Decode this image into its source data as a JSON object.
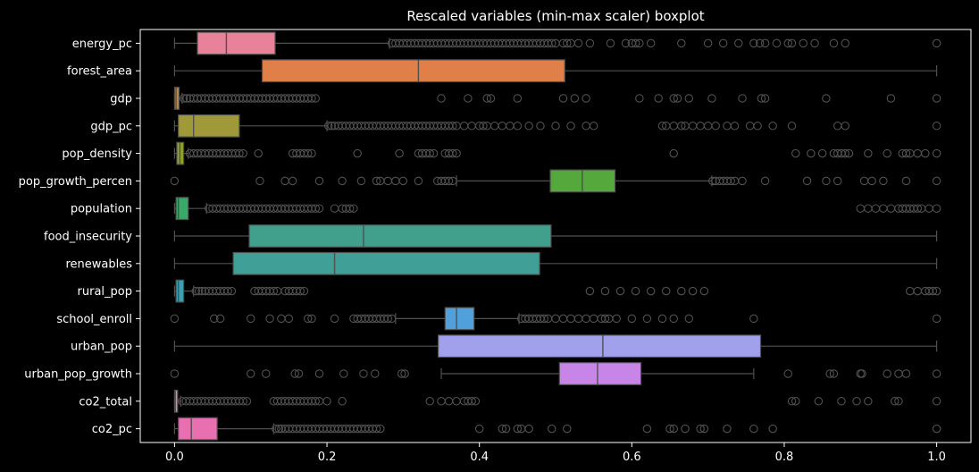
{
  "chart_data": {
    "type": "boxplot",
    "orientation": "horizontal",
    "title": "Rescaled variables (min-max scaler) boxplot",
    "xlabel": "",
    "ylabel": "",
    "xlim": [
      -0.045,
      1.045
    ],
    "x_ticks": [
      0.0,
      0.2,
      0.4,
      0.6,
      0.8,
      1.0
    ],
    "x_tick_labels": [
      "0.0",
      "0.2",
      "0.4",
      "0.6",
      "0.8",
      "1.0"
    ],
    "grid": false,
    "legend": false,
    "background": "#000000",
    "axis_color": "#ffffff",
    "whisker_color": "#505050",
    "series": [
      {
        "name": "energy_pc",
        "color": "#e8829a",
        "min": 0.0,
        "q1": 0.03,
        "median": 0.068,
        "q3": 0.132,
        "max": 0.282,
        "outliers": [
          0.285,
          0.29,
          0.295,
          0.3,
          0.305,
          0.31,
          0.315,
          0.32,
          0.325,
          0.33,
          0.335,
          0.34,
          0.345,
          0.35,
          0.355,
          0.36,
          0.365,
          0.37,
          0.375,
          0.38,
          0.385,
          0.39,
          0.395,
          0.4,
          0.405,
          0.41,
          0.415,
          0.42,
          0.425,
          0.43,
          0.435,
          0.44,
          0.445,
          0.45,
          0.455,
          0.46,
          0.465,
          0.47,
          0.475,
          0.48,
          0.485,
          0.49,
          0.495,
          0.5,
          0.51,
          0.515,
          0.52,
          0.53,
          0.545,
          0.572,
          0.592,
          0.6,
          0.605,
          0.61,
          0.625,
          0.665,
          0.7,
          0.72,
          0.74,
          0.76,
          0.768,
          0.775,
          0.79,
          0.805,
          0.81,
          0.825,
          0.84,
          0.865,
          0.88,
          1.0
        ]
      },
      {
        "name": "forest_area",
        "color": "#e08048",
        "min": 0.0,
        "q1": 0.115,
        "median": 0.32,
        "q3": 0.512,
        "max": 1.0,
        "outliers": []
      },
      {
        "name": "gdp",
        "color": "#b88a4e",
        "min": 0.0,
        "q1": 0.0,
        "median": 0.002,
        "q3": 0.006,
        "max": 0.01,
        "outliers": [
          0.012,
          0.016,
          0.02,
          0.025,
          0.03,
          0.035,
          0.04,
          0.045,
          0.05,
          0.055,
          0.06,
          0.065,
          0.07,
          0.075,
          0.08,
          0.085,
          0.09,
          0.095,
          0.1,
          0.105,
          0.11,
          0.115,
          0.12,
          0.125,
          0.13,
          0.135,
          0.14,
          0.145,
          0.15,
          0.155,
          0.16,
          0.165,
          0.17,
          0.175,
          0.18,
          0.185,
          0.35,
          0.385,
          0.41,
          0.415,
          0.45,
          0.51,
          0.525,
          0.54,
          0.61,
          0.635,
          0.655,
          0.66,
          0.675,
          0.705,
          0.745,
          0.77,
          0.775,
          0.855,
          0.94,
          1.0
        ]
      },
      {
        "name": "gdp_pc",
        "color": "#a0993a",
        "min": 0.0,
        "q1": 0.005,
        "median": 0.025,
        "q3": 0.085,
        "max": 0.2,
        "outliers": [
          0.202,
          0.206,
          0.21,
          0.215,
          0.22,
          0.225,
          0.23,
          0.235,
          0.24,
          0.245,
          0.25,
          0.255,
          0.26,
          0.265,
          0.27,
          0.275,
          0.28,
          0.285,
          0.29,
          0.295,
          0.3,
          0.305,
          0.31,
          0.315,
          0.32,
          0.325,
          0.33,
          0.335,
          0.34,
          0.345,
          0.35,
          0.355,
          0.36,
          0.365,
          0.37,
          0.38,
          0.39,
          0.4,
          0.405,
          0.41,
          0.42,
          0.43,
          0.44,
          0.45,
          0.465,
          0.48,
          0.5,
          0.52,
          0.54,
          0.55,
          0.64,
          0.645,
          0.655,
          0.665,
          0.67,
          0.68,
          0.69,
          0.7,
          0.71,
          0.725,
          0.735,
          0.755,
          0.765,
          0.785,
          0.81,
          0.87,
          0.88,
          1.0
        ]
      },
      {
        "name": "pop_density",
        "color": "#90a030",
        "min": 0.0,
        "q1": 0.003,
        "median": 0.007,
        "q3": 0.012,
        "max": 0.018,
        "outliers": [
          0.02,
          0.025,
          0.03,
          0.035,
          0.04,
          0.045,
          0.05,
          0.055,
          0.06,
          0.065,
          0.07,
          0.075,
          0.08,
          0.085,
          0.09,
          0.11,
          0.155,
          0.16,
          0.165,
          0.17,
          0.175,
          0.18,
          0.24,
          0.295,
          0.32,
          0.325,
          0.33,
          0.335,
          0.34,
          0.355,
          0.36,
          0.365,
          0.37,
          0.655,
          0.815,
          0.835,
          0.85,
          0.865,
          0.87,
          0.875,
          0.88,
          0.885,
          0.91,
          0.935,
          0.955,
          0.96,
          0.965,
          0.975,
          0.985,
          1.0
        ]
      },
      {
        "name": "pop_growth_percen",
        "color": "#55a83c",
        "min": 0.37,
        "q1": 0.493,
        "median": 0.535,
        "q3": 0.578,
        "max": 0.705,
        "outliers": [
          0.0,
          0.112,
          0.145,
          0.155,
          0.19,
          0.22,
          0.245,
          0.265,
          0.27,
          0.28,
          0.29,
          0.3,
          0.32,
          0.345,
          0.35,
          0.355,
          0.36,
          0.365,
          0.706,
          0.71,
          0.715,
          0.72,
          0.725,
          0.73,
          0.735,
          0.745,
          0.775,
          0.83,
          0.855,
          0.87,
          0.905,
          0.915,
          0.93,
          0.96,
          1.0
        ]
      },
      {
        "name": "population",
        "color": "#3aa868",
        "min": 0.0,
        "q1": 0.002,
        "median": 0.005,
        "q3": 0.018,
        "max": 0.042,
        "outliers": [
          0.045,
          0.05,
          0.055,
          0.06,
          0.065,
          0.07,
          0.075,
          0.08,
          0.085,
          0.09,
          0.095,
          0.1,
          0.105,
          0.11,
          0.115,
          0.12,
          0.125,
          0.13,
          0.135,
          0.14,
          0.145,
          0.15,
          0.155,
          0.16,
          0.165,
          0.17,
          0.175,
          0.18,
          0.185,
          0.19,
          0.21,
          0.22,
          0.225,
          0.23,
          0.235,
          0.9,
          0.91,
          0.92,
          0.93,
          0.94,
          0.95,
          0.955,
          0.96,
          0.965,
          0.97,
          0.975,
          0.98,
          0.99,
          1.0
        ]
      },
      {
        "name": "food_insecurity",
        "color": "#40a08c",
        "min": 0.0,
        "q1": 0.098,
        "median": 0.248,
        "q3": 0.494,
        "max": 1.0,
        "outliers": []
      },
      {
        "name": "renewables",
        "color": "#40a098",
        "min": 0.0,
        "q1": 0.077,
        "median": 0.21,
        "q3": 0.479,
        "max": 1.0,
        "outliers": []
      },
      {
        "name": "rural_pop",
        "color": "#38a0b0",
        "min": 0.0,
        "q1": 0.002,
        "median": 0.005,
        "q3": 0.012,
        "max": 0.025,
        "outliers": [
          0.028,
          0.032,
          0.036,
          0.04,
          0.045,
          0.05,
          0.055,
          0.06,
          0.065,
          0.07,
          0.075,
          0.105,
          0.11,
          0.115,
          0.12,
          0.125,
          0.13,
          0.135,
          0.145,
          0.15,
          0.155,
          0.16,
          0.165,
          0.17,
          0.545,
          0.565,
          0.585,
          0.605,
          0.625,
          0.645,
          0.665,
          0.68,
          0.695,
          0.965,
          0.975,
          0.985,
          0.99,
          0.995,
          1.0
        ]
      },
      {
        "name": "school_enroll",
        "color": "#50a0dc",
        "min": 0.29,
        "q1": 0.355,
        "median": 0.37,
        "q3": 0.393,
        "max": 0.452,
        "outliers": [
          0.0,
          0.052,
          0.06,
          0.1,
          0.125,
          0.14,
          0.15,
          0.175,
          0.18,
          0.21,
          0.235,
          0.24,
          0.245,
          0.25,
          0.255,
          0.26,
          0.265,
          0.27,
          0.275,
          0.28,
          0.285,
          0.455,
          0.46,
          0.465,
          0.47,
          0.475,
          0.48,
          0.485,
          0.49,
          0.5,
          0.51,
          0.52,
          0.53,
          0.54,
          0.55,
          0.56,
          0.565,
          0.57,
          0.58,
          0.6,
          0.62,
          0.64,
          0.655,
          0.675,
          0.76,
          1.0
        ]
      },
      {
        "name": "urban_pop",
        "color": "#a0a0ec",
        "min": 0.0,
        "q1": 0.346,
        "median": 0.562,
        "q3": 0.769,
        "max": 1.0,
        "outliers": []
      },
      {
        "name": "urban_pop_growth",
        "color": "#c885e8",
        "min": 0.35,
        "q1": 0.505,
        "median": 0.555,
        "q3": 0.612,
        "max": 0.76,
        "outliers": [
          0.0,
          0.1,
          0.12,
          0.158,
          0.163,
          0.19,
          0.222,
          0.248,
          0.263,
          0.298,
          0.302,
          0.805,
          0.86,
          0.865,
          0.9,
          0.902,
          0.935,
          0.95,
          0.96,
          1.0
        ]
      },
      {
        "name": "co2_total",
        "color": "#e080c8",
        "min": 0.0,
        "q1": 0.0,
        "median": 0.001,
        "q3": 0.004,
        "max": 0.008,
        "outliers": [
          0.01,
          0.015,
          0.02,
          0.025,
          0.03,
          0.035,
          0.04,
          0.045,
          0.05,
          0.055,
          0.06,
          0.065,
          0.07,
          0.075,
          0.08,
          0.085,
          0.09,
          0.095,
          0.13,
          0.135,
          0.14,
          0.145,
          0.15,
          0.155,
          0.16,
          0.165,
          0.17,
          0.175,
          0.18,
          0.185,
          0.19,
          0.2,
          0.22,
          0.335,
          0.35,
          0.36,
          0.37,
          0.38,
          0.385,
          0.39,
          0.395,
          0.81,
          0.815,
          0.845,
          0.875,
          0.895,
          0.91,
          0.945,
          0.95,
          1.0
        ]
      },
      {
        "name": "co2_pc",
        "color": "#e870b0",
        "min": 0.0,
        "q1": 0.005,
        "median": 0.022,
        "q3": 0.056,
        "max": 0.13,
        "outliers": [
          0.133,
          0.137,
          0.14,
          0.145,
          0.15,
          0.155,
          0.16,
          0.165,
          0.17,
          0.175,
          0.18,
          0.185,
          0.19,
          0.195,
          0.2,
          0.205,
          0.21,
          0.215,
          0.22,
          0.225,
          0.23,
          0.235,
          0.24,
          0.245,
          0.25,
          0.255,
          0.26,
          0.265,
          0.27,
          0.4,
          0.43,
          0.435,
          0.45,
          0.455,
          0.465,
          0.495,
          0.515,
          0.62,
          0.65,
          0.655,
          0.67,
          0.69,
          0.695,
          0.725,
          0.76,
          0.785,
          1.0
        ]
      }
    ]
  }
}
